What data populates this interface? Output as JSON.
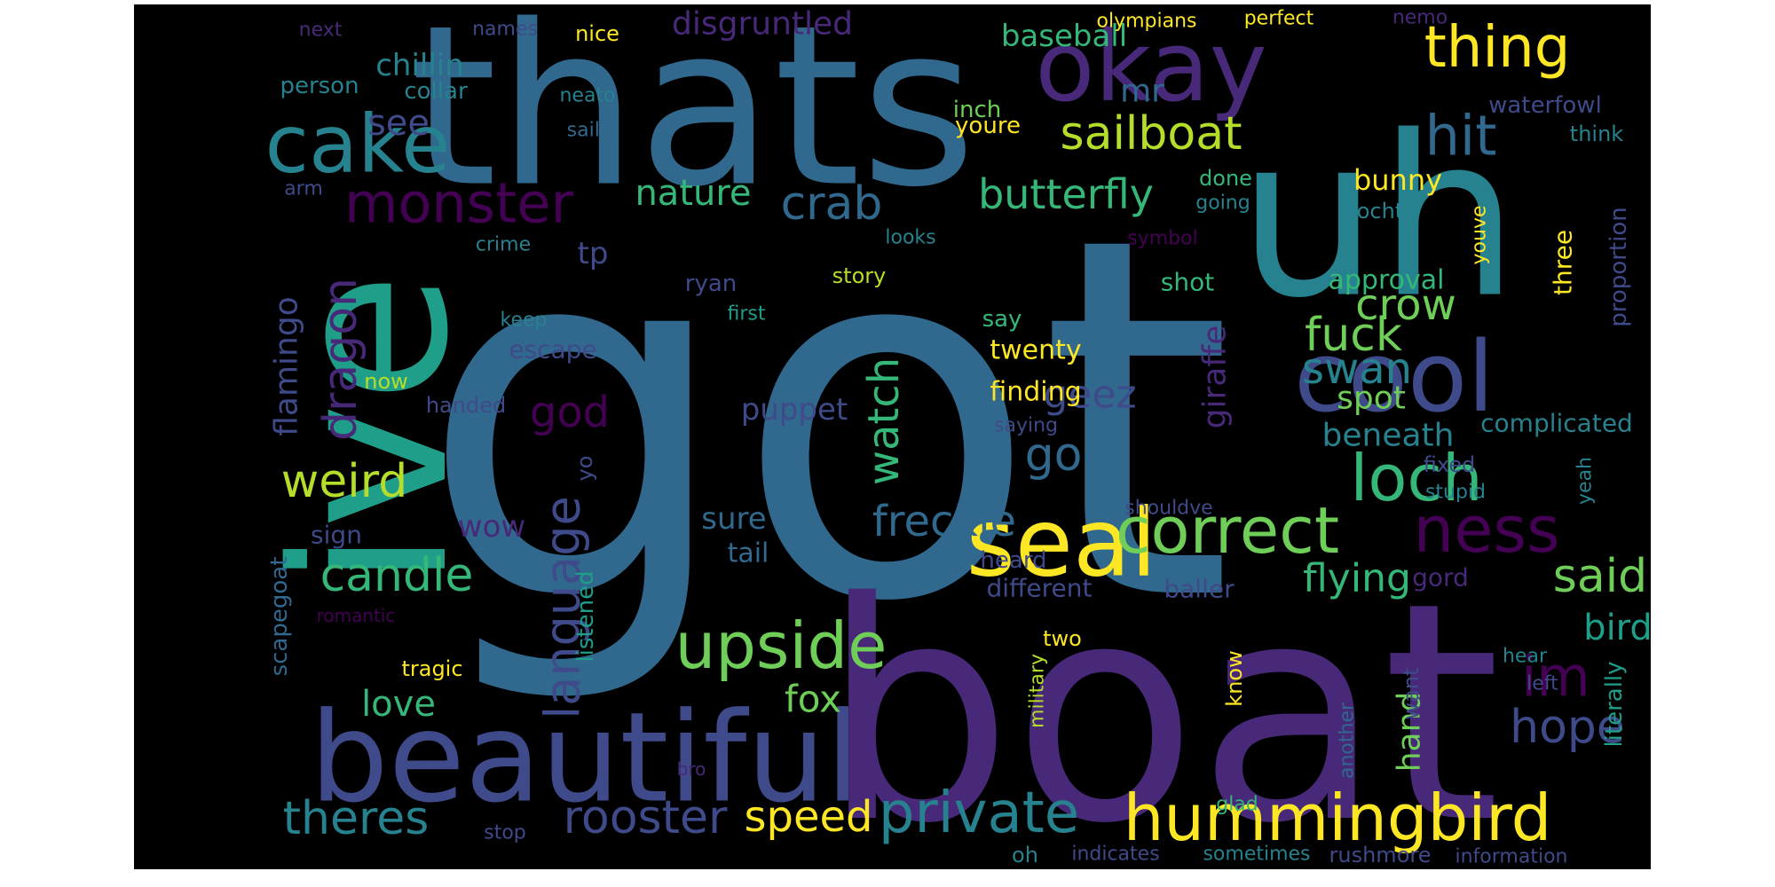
{
  "palette": [
    "#440154",
    "#482878",
    "#3e4a89",
    "#31688e",
    "#26828e",
    "#1f9e89",
    "#35b779",
    "#6ece58",
    "#b5de2b",
    "#fde725"
  ],
  "words": [
    {
      "text": "got",
      "color": "#31688e"
    },
    {
      "text": "boat",
      "color": "#482878"
    },
    {
      "text": "thats",
      "color": "#31688e"
    },
    {
      "text": "uh",
      "color": "#26828e"
    },
    {
      "text": "ive",
      "color": "#1f9e89"
    },
    {
      "text": "beautiful",
      "color": "#3e4a89"
    },
    {
      "text": "okay",
      "color": "#482878"
    },
    {
      "text": "cool",
      "color": "#3e4a89"
    },
    {
      "text": "seal",
      "color": "#fde725"
    },
    {
      "text": "cake",
      "color": "#26828e"
    },
    {
      "text": "hummingbird",
      "color": "#fde725"
    },
    {
      "text": "correct",
      "color": "#6ece58"
    },
    {
      "text": "ness",
      "color": "#440154"
    },
    {
      "text": "loch",
      "color": "#35b779"
    },
    {
      "text": "upside",
      "color": "#6ece58"
    },
    {
      "text": "private",
      "color": "#26828e"
    },
    {
      "text": "thing",
      "color": "#fde725"
    },
    {
      "text": "monster",
      "color": "#440154"
    },
    {
      "text": "hit",
      "color": "#31688e"
    },
    {
      "text": "sailboat",
      "color": "#b5de2b"
    },
    {
      "text": "rooster",
      "color": "#3e4a89"
    },
    {
      "text": "im",
      "color": "#440154"
    },
    {
      "text": "language",
      "color": "#3e4a89"
    },
    {
      "text": "theres",
      "color": "#26828e"
    },
    {
      "text": "weird",
      "color": "#b5de2b"
    },
    {
      "text": "hope",
      "color": "#3e4a89"
    },
    {
      "text": "candle",
      "color": "#35b779"
    },
    {
      "text": "fuck",
      "color": "#6ece58"
    },
    {
      "text": "crab",
      "color": "#31688e"
    },
    {
      "text": "said",
      "color": "#6ece58"
    },
    {
      "text": "dragon",
      "color": "#482878"
    },
    {
      "text": "swan",
      "color": "#26828e"
    },
    {
      "text": "geez",
      "color": "#3e4a89"
    },
    {
      "text": "go",
      "color": "#31688e"
    },
    {
      "text": "watch",
      "color": "#35b779"
    },
    {
      "text": "speed",
      "color": "#fde725"
    },
    {
      "text": "crow",
      "color": "#6ece58"
    },
    {
      "text": "freckle",
      "color": "#31688e"
    },
    {
      "text": "butterfly",
      "color": "#35b779"
    },
    {
      "text": "flamingo",
      "color": "#3e4a89"
    },
    {
      "text": "giraffe",
      "color": "#482878"
    },
    {
      "text": "flying",
      "color": "#35b779"
    },
    {
      "text": "god",
      "color": "#440154"
    },
    {
      "text": "nature",
      "color": "#35b779"
    },
    {
      "text": "see",
      "color": "#3e4a89"
    },
    {
      "text": "love",
      "color": "#35b779"
    },
    {
      "text": "fox",
      "color": "#6ece58"
    },
    {
      "text": "bird",
      "color": "#1f9e89"
    },
    {
      "text": "spot",
      "color": "#6ece58"
    },
    {
      "text": "beneath",
      "color": "#26828e"
    },
    {
      "text": "hand",
      "color": "#6ece58"
    },
    {
      "text": "mr",
      "color": "#31688e"
    },
    {
      "text": "disgruntled",
      "color": "#482878"
    },
    {
      "text": "baseball",
      "color": "#35b779"
    },
    {
      "text": "chillin",
      "color": "#26828e"
    },
    {
      "text": "puppet",
      "color": "#3e4a89"
    },
    {
      "text": "sure",
      "color": "#31688e"
    },
    {
      "text": "bunny",
      "color": "#fde725"
    },
    {
      "text": "tp",
      "color": "#3e4a89"
    },
    {
      "text": "wow",
      "color": "#482878"
    },
    {
      "text": "tail",
      "color": "#31688e"
    },
    {
      "text": "twenty",
      "color": "#fde725"
    },
    {
      "text": "finding",
      "color": "#fde725"
    },
    {
      "text": "approval",
      "color": "#35b779"
    },
    {
      "text": "complicated",
      "color": "#26828e"
    },
    {
      "text": "different",
      "color": "#3e4a89"
    },
    {
      "text": "baller",
      "color": "#3e4a89"
    },
    {
      "text": "gord",
      "color": "#482878"
    },
    {
      "text": "scapegoat",
      "color": "#31688e"
    },
    {
      "text": "listened",
      "color": "#1f9e89"
    },
    {
      "text": "literally",
      "color": "#1f9e89"
    },
    {
      "text": "proportion",
      "color": "#3e4a89"
    },
    {
      "text": "escape",
      "color": "#3e4a89"
    },
    {
      "text": "shot",
      "color": "#35b779"
    },
    {
      "text": "three",
      "color": "#fde725"
    },
    {
      "text": "person",
      "color": "#26828e"
    },
    {
      "text": "collar",
      "color": "#26828e"
    },
    {
      "text": "inch",
      "color": "#6ece58"
    },
    {
      "text": "youre",
      "color": "#fde725"
    },
    {
      "text": "waterfowl",
      "color": "#3e4a89"
    },
    {
      "text": "nice",
      "color": "#fde725"
    },
    {
      "text": "names",
      "color": "#3e4a89"
    },
    {
      "text": "next",
      "color": "#482878"
    },
    {
      "text": "olympians",
      "color": "#fde725"
    },
    {
      "text": "perfect",
      "color": "#fde725"
    },
    {
      "text": "nemo",
      "color": "#482878"
    },
    {
      "text": "neato",
      "color": "#26828e"
    },
    {
      "text": "sails",
      "color": "#31688e"
    },
    {
      "text": "think",
      "color": "#26828e"
    },
    {
      "text": "arm",
      "color": "#3e4a89"
    },
    {
      "text": "done",
      "color": "#35b779"
    },
    {
      "text": "going",
      "color": "#26828e"
    },
    {
      "text": "lochte",
      "color": "#26828e"
    },
    {
      "text": "youve",
      "color": "#fde725"
    },
    {
      "text": "crime",
      "color": "#26828e"
    },
    {
      "text": "looks",
      "color": "#26828e"
    },
    {
      "text": "symbol",
      "color": "#440154"
    },
    {
      "text": "ryan",
      "color": "#3e4a89"
    },
    {
      "text": "story",
      "color": "#b5de2b"
    },
    {
      "text": "first",
      "color": "#1f9e89"
    },
    {
      "text": "keep",
      "color": "#26828e"
    },
    {
      "text": "now",
      "color": "#b5de2b"
    },
    {
      "text": "say",
      "color": "#35b779"
    },
    {
      "text": "handed",
      "color": "#3e4a89"
    },
    {
      "text": "saying",
      "color": "#3e4a89"
    },
    {
      "text": "yo",
      "color": "#3e4a89"
    },
    {
      "text": "shouldve",
      "color": "#3e4a89"
    },
    {
      "text": "fixed",
      "color": "#3e4a89"
    },
    {
      "text": "stupid",
      "color": "#26828e"
    },
    {
      "text": "yeah",
      "color": "#26828e"
    },
    {
      "text": "sign",
      "color": "#3e4a89"
    },
    {
      "text": "heard",
      "color": "#3e4a89"
    },
    {
      "text": "romantic",
      "color": "#440154"
    },
    {
      "text": "two",
      "color": "#fde725"
    },
    {
      "text": "know",
      "color": "#fde725"
    },
    {
      "text": "military",
      "color": "#b5de2b"
    },
    {
      "text": "another",
      "color": "#31688e"
    },
    {
      "text": "want",
      "color": "#3e4a89"
    },
    {
      "text": "hear",
      "color": "#26828e"
    },
    {
      "text": "left",
      "color": "#3e4a89"
    },
    {
      "text": "tragic",
      "color": "#fde725"
    },
    {
      "text": "bro",
      "color": "#482878"
    },
    {
      "text": "glad",
      "color": "#35b779"
    },
    {
      "text": "stop",
      "color": "#3e4a89"
    },
    {
      "text": "oh",
      "color": "#26828e"
    },
    {
      "text": "indicates",
      "color": "#3e4a89"
    },
    {
      "text": "sometimes",
      "color": "#26828e"
    },
    {
      "text": "rushmore",
      "color": "#3e4a89"
    },
    {
      "text": "information",
      "color": "#3e4a89"
    }
  ]
}
